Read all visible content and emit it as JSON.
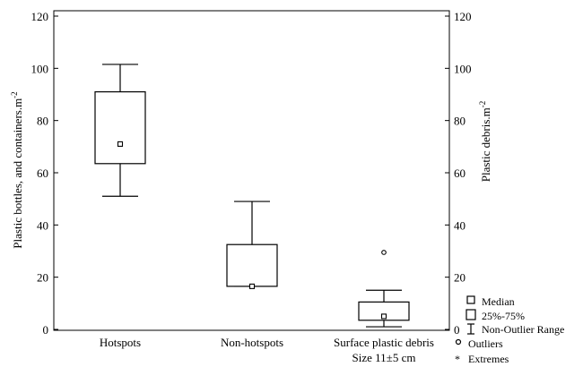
{
  "chart_data": {
    "type": "box",
    "y_left_label": "Plastic bottles, and containers.m",
    "y_right_label": "Plastic debris.m",
    "y_label_superscript": "-2",
    "ylim": [
      0,
      120
    ],
    "yticks": [
      "0",
      "20",
      "40",
      "60",
      "80",
      "100",
      "120"
    ],
    "yticks_right": [
      "0",
      "20",
      "40",
      "60",
      "80",
      "100",
      "120"
    ],
    "categories": [
      {
        "label": "Hotspots",
        "label_line2": "",
        "whisker_low": 51,
        "q1": 63.5,
        "median": 71,
        "q3": 91,
        "whisker_high": 101.5,
        "outliers": [],
        "extremes": []
      },
      {
        "label": "Non-hotspots",
        "label_line2": "",
        "whisker_low": 16.5,
        "q1": 16.5,
        "median": 16.5,
        "q3": 32.5,
        "whisker_high": 49,
        "outliers": [],
        "extremes": []
      },
      {
        "label": "Surface plastic debris",
        "label_line2": "Size 11±5 cm",
        "whisker_low": 1,
        "q1": 3.5,
        "median": 5,
        "q3": 10.5,
        "whisker_high": 15,
        "outliers": [
          29.5
        ],
        "extremes": []
      }
    ],
    "legend": {
      "placement": "bottom-right",
      "items": [
        {
          "label": "Median",
          "symbol": "small-square"
        },
        {
          "label": "25%-75%",
          "symbol": "box"
        },
        {
          "label": "Non-Outlier Range",
          "symbol": "whisker"
        },
        {
          "label": "Outliers",
          "symbol": "circle"
        },
        {
          "label": "Extremes",
          "symbol": "star"
        }
      ]
    }
  }
}
